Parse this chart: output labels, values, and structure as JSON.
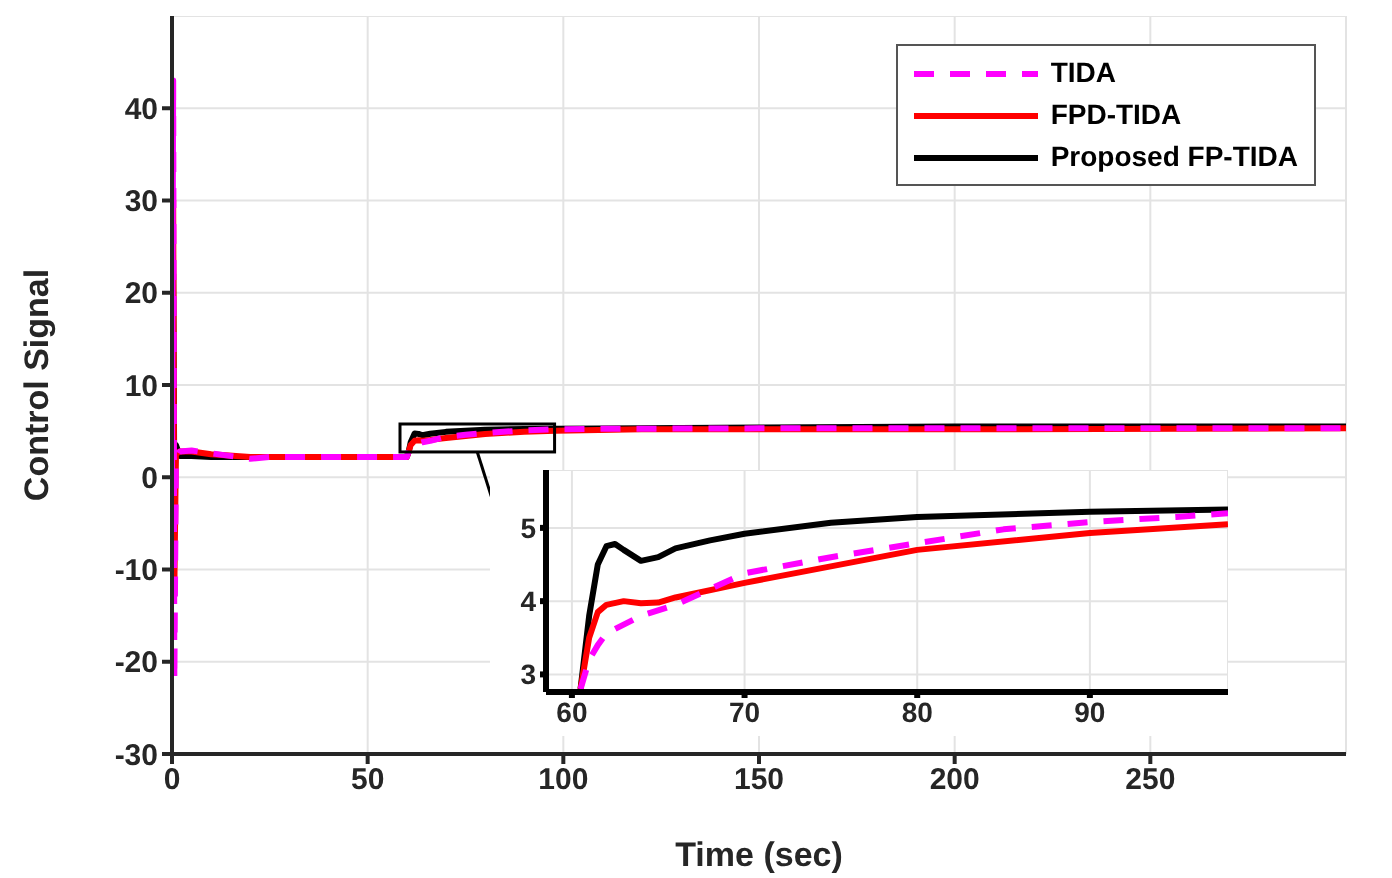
{
  "chart_data": [
    {
      "type": "line",
      "xlabel": "Time (sec)",
      "ylabel": "Control Signal",
      "xlim": [
        0,
        300
      ],
      "ylim": [
        -30,
        50
      ],
      "xticks": [
        0,
        50,
        100,
        150,
        200,
        250
      ],
      "yticks": [
        -30,
        -20,
        -10,
        0,
        10,
        20,
        30,
        40
      ],
      "grid": true,
      "legend": "top right",
      "series": [
        {
          "name": "TIDA",
          "color": "#ff00ff",
          "line_style": "dashed",
          "x": [
            0,
            0.3,
            0.6,
            1,
            2,
            5,
            10,
            20,
            25,
            40,
            60,
            60.5,
            61,
            62,
            64,
            66,
            70,
            75,
            80,
            90,
            98,
            110,
            150,
            200,
            300
          ],
          "values": [
            0,
            43,
            -22,
            2,
            2.8,
            2.9,
            2.6,
            2.0,
            2.2,
            2.2,
            2.2,
            2.8,
            3.2,
            3.56,
            3.8,
            3.95,
            4.38,
            4.6,
            4.79,
            5.08,
            5.2,
            5.25,
            5.3,
            5.3,
            5.3
          ]
        },
        {
          "name": "FPD-TIDA",
          "color": "#ff0000",
          "line_style": "solid",
          "x": [
            0,
            0.3,
            0.6,
            1,
            2,
            5,
            10,
            20,
            40,
            60,
            60.5,
            61,
            62,
            63,
            64,
            66,
            70,
            80,
            90,
            98,
            120,
            150,
            200,
            300
          ],
          "values": [
            0,
            30,
            -12,
            2.5,
            2.8,
            2.8,
            2.5,
            2.2,
            2.2,
            2.2,
            2.8,
            3.5,
            3.95,
            4.0,
            3.97,
            4.05,
            4.25,
            4.7,
            4.93,
            5.05,
            5.2,
            5.2,
            5.2,
            5.3
          ]
        },
        {
          "name": "Proposed FP-TIDA",
          "color": "#000000",
          "line_style": "solid",
          "x": [
            0,
            0.3,
            0.6,
            1,
            2,
            5,
            10,
            20,
            40,
            60,
            60.5,
            61,
            62,
            63,
            64,
            66,
            70,
            80,
            90,
            98,
            120,
            150,
            200,
            300
          ],
          "values": [
            0,
            22,
            -1.5,
            3.5,
            2.3,
            2.3,
            2.2,
            2.2,
            2.2,
            2.2,
            2.8,
            3.8,
            4.75,
            4.7,
            4.55,
            4.72,
            4.92,
            5.15,
            5.22,
            5.25,
            5.3,
            5.4,
            5.5,
            5.5
          ]
        }
      ]
    },
    {
      "type": "line",
      "xlim": [
        58.5,
        98
      ],
      "ylim": [
        2.76,
        5.79
      ],
      "xticks": [
        60,
        70,
        80,
        90
      ],
      "yticks": [
        3,
        4,
        5
      ],
      "grid": true,
      "series": [
        {
          "color": "#ff00ff",
          "line_style": "dashed",
          "x": [
            60.5,
            61,
            61.5,
            62,
            64,
            66,
            70,
            75,
            80,
            85,
            90,
            95,
            98
          ],
          "values": [
            2.8,
            3.2,
            3.4,
            3.56,
            3.8,
            3.95,
            4.38,
            4.6,
            4.79,
            4.98,
            5.08,
            5.15,
            5.2
          ]
        },
        {
          "color": "#ff0000",
          "line_style": "solid",
          "x": [
            60.5,
            61,
            61.5,
            62,
            63,
            64,
            65,
            66,
            70,
            80,
            90,
            98
          ],
          "values": [
            2.8,
            3.5,
            3.85,
            3.95,
            4.0,
            3.97,
            3.98,
            4.05,
            4.25,
            4.7,
            4.93,
            5.05
          ]
        },
        {
          "color": "#000000",
          "line_style": "solid",
          "x": [
            60.5,
            61,
            61.5,
            62,
            62.5,
            63,
            64,
            65,
            66,
            68,
            70,
            75,
            80,
            90,
            98
          ],
          "values": [
            2.8,
            3.8,
            4.5,
            4.75,
            4.78,
            4.7,
            4.55,
            4.6,
            4.72,
            4.83,
            4.92,
            5.07,
            5.15,
            5.22,
            5.25
          ]
        }
      ]
    }
  ]
}
